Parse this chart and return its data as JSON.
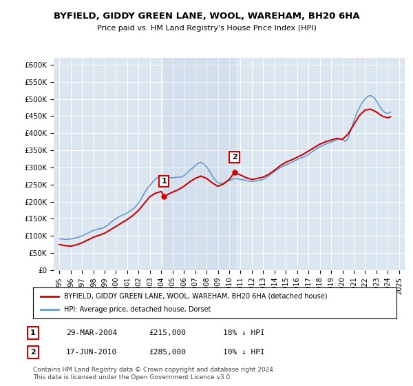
{
  "title": "BYFIELD, GIDDY GREEN LANE, WOOL, WAREHAM, BH20 6HA",
  "subtitle": "Price paid vs. HM Land Registry's House Price Index (HPI)",
  "ylabel_ticks": [
    "£0",
    "£50K",
    "£100K",
    "£150K",
    "£200K",
    "£250K",
    "£300K",
    "£350K",
    "£400K",
    "£450K",
    "£500K",
    "£550K",
    "£600K"
  ],
  "ylim": [
    0,
    620000
  ],
  "xlim_start": 1995.0,
  "xlim_end": 2025.5,
  "background_color": "#dce6f1",
  "plot_bg_color": "#dce6f1",
  "red_line_color": "#cc0000",
  "blue_line_color": "#6699cc",
  "sale1_x": 2004.24,
  "sale1_y": 215000,
  "sale2_x": 2010.46,
  "sale2_y": 285000,
  "legend_red": "BYFIELD, GIDDY GREEN LANE, WOOL, WAREHAM, BH20 6HA (detached house)",
  "legend_blue": "HPI: Average price, detached house, Dorset",
  "annotation1_date": "29-MAR-2004",
  "annotation1_price": "£215,000",
  "annotation1_hpi": "18% ↓ HPI",
  "annotation2_date": "17-JUN-2010",
  "annotation2_price": "£285,000",
  "annotation2_hpi": "10% ↓ HPI",
  "footer": "Contains HM Land Registry data © Crown copyright and database right 2024.\nThis data is licensed under the Open Government Licence v3.0.",
  "hpi_years": [
    1995.0,
    1995.25,
    1995.5,
    1995.75,
    1996.0,
    1996.25,
    1996.5,
    1996.75,
    1997.0,
    1997.25,
    1997.5,
    1997.75,
    1998.0,
    1998.25,
    1998.5,
    1998.75,
    1999.0,
    1999.25,
    1999.5,
    1999.75,
    2000.0,
    2000.25,
    2000.5,
    2000.75,
    2001.0,
    2001.25,
    2001.5,
    2001.75,
    2002.0,
    2002.25,
    2002.5,
    2002.75,
    2003.0,
    2003.25,
    2003.5,
    2003.75,
    2004.0,
    2004.25,
    2004.5,
    2004.75,
    2005.0,
    2005.25,
    2005.5,
    2005.75,
    2006.0,
    2006.25,
    2006.5,
    2006.75,
    2007.0,
    2007.25,
    2007.5,
    2007.75,
    2008.0,
    2008.25,
    2008.5,
    2008.75,
    2009.0,
    2009.25,
    2009.5,
    2009.75,
    2010.0,
    2010.25,
    2010.5,
    2010.75,
    2011.0,
    2011.25,
    2011.5,
    2011.75,
    2012.0,
    2012.25,
    2012.5,
    2012.75,
    2013.0,
    2013.25,
    2013.5,
    2013.75,
    2014.0,
    2014.25,
    2014.5,
    2014.75,
    2015.0,
    2015.25,
    2015.5,
    2015.75,
    2016.0,
    2016.25,
    2016.5,
    2016.75,
    2017.0,
    2017.25,
    2017.5,
    2017.75,
    2018.0,
    2018.25,
    2018.5,
    2018.75,
    2019.0,
    2019.25,
    2019.5,
    2019.75,
    2020.0,
    2020.25,
    2020.5,
    2020.75,
    2021.0,
    2021.25,
    2021.5,
    2021.75,
    2022.0,
    2022.25,
    2022.5,
    2022.75,
    2023.0,
    2023.25,
    2023.5,
    2023.75,
    2024.0,
    2024.25
  ],
  "hpi_values": [
    92000,
    91000,
    90000,
    90500,
    91000,
    93000,
    95000,
    97000,
    100000,
    104000,
    108000,
    112000,
    116000,
    119000,
    121000,
    122000,
    125000,
    131000,
    138000,
    145000,
    150000,
    156000,
    160000,
    163000,
    167000,
    173000,
    179000,
    186000,
    196000,
    210000,
    225000,
    238000,
    248000,
    258000,
    267000,
    272000,
    274000,
    273000,
    271000,
    270000,
    270000,
    271000,
    272000,
    272000,
    276000,
    283000,
    291000,
    298000,
    305000,
    312000,
    315000,
    310000,
    302000,
    290000,
    276000,
    264000,
    256000,
    253000,
    255000,
    258000,
    262000,
    265000,
    268000,
    267000,
    265000,
    264000,
    262000,
    260000,
    259000,
    260000,
    261000,
    263000,
    265000,
    270000,
    276000,
    282000,
    288000,
    294000,
    299000,
    303000,
    307000,
    311000,
    315000,
    319000,
    323000,
    327000,
    330000,
    333000,
    338000,
    344000,
    350000,
    355000,
    360000,
    364000,
    368000,
    371000,
    374000,
    378000,
    381000,
    383000,
    382000,
    376000,
    385000,
    410000,
    435000,
    458000,
    475000,
    490000,
    500000,
    508000,
    510000,
    505000,
    495000,
    480000,
    468000,
    460000,
    458000,
    462000
  ],
  "red_years": [
    1995.0,
    1995.5,
    1996.0,
    1996.5,
    1997.0,
    1997.5,
    1998.0,
    1998.5,
    1999.0,
    1999.5,
    2000.0,
    2000.5,
    2001.0,
    2001.5,
    2002.0,
    2002.5,
    2003.0,
    2003.5,
    2004.0,
    2004.24,
    2004.5,
    2005.0,
    2005.5,
    2006.0,
    2006.5,
    2007.0,
    2007.5,
    2008.0,
    2008.5,
    2009.0,
    2009.5,
    2010.0,
    2010.46,
    2011.0,
    2011.5,
    2012.0,
    2012.5,
    2013.0,
    2013.5,
    2014.0,
    2014.5,
    2015.0,
    2015.5,
    2016.0,
    2016.5,
    2017.0,
    2017.5,
    2018.0,
    2018.5,
    2019.0,
    2019.5,
    2020.0,
    2020.5,
    2021.0,
    2021.5,
    2022.0,
    2022.5,
    2023.0,
    2023.5,
    2024.0,
    2024.25
  ],
  "red_values": [
    75000,
    72000,
    70000,
    74000,
    80000,
    88000,
    96000,
    102000,
    108000,
    118000,
    128000,
    138000,
    148000,
    160000,
    175000,
    195000,
    215000,
    225000,
    230000,
    215000,
    220000,
    228000,
    235000,
    245000,
    258000,
    268000,
    275000,
    268000,
    255000,
    245000,
    252000,
    265000,
    285000,
    278000,
    270000,
    265000,
    268000,
    272000,
    280000,
    292000,
    305000,
    315000,
    322000,
    330000,
    338000,
    348000,
    358000,
    368000,
    375000,
    380000,
    385000,
    382000,
    398000,
    425000,
    452000,
    468000,
    470000,
    462000,
    450000,
    445000,
    448000
  ]
}
